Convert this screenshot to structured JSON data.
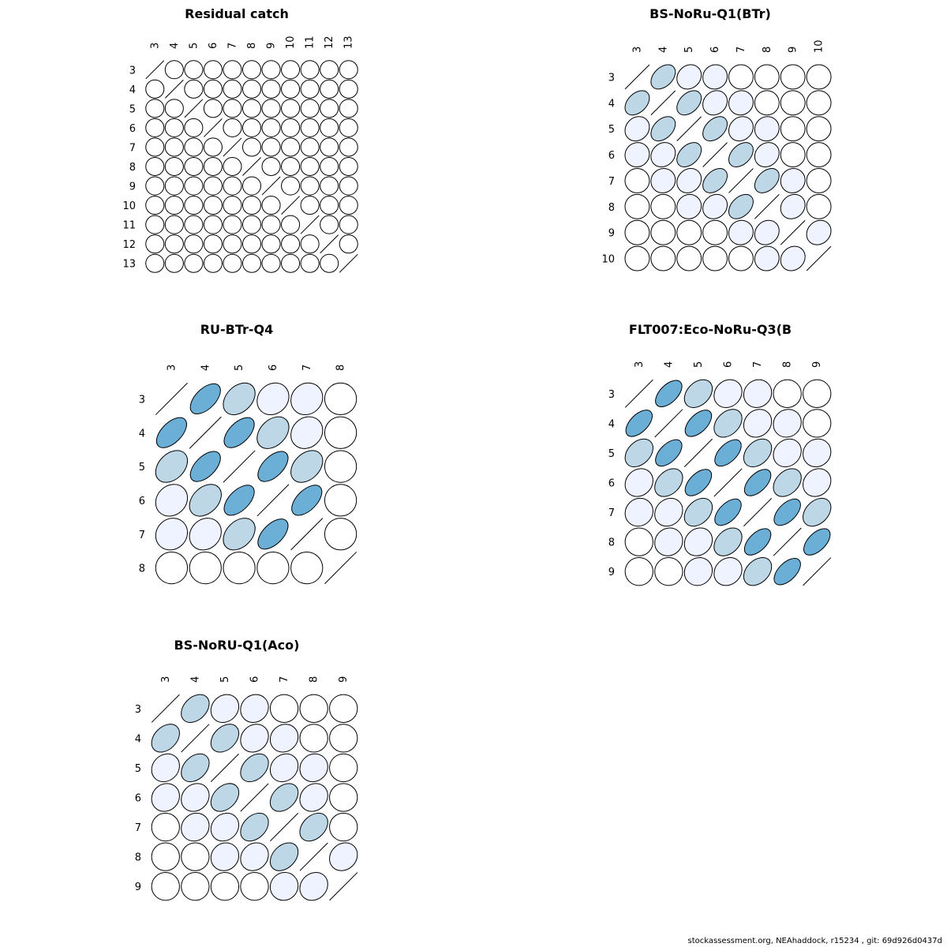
{
  "footer": "stockassessment.org, NEAhaddock, r15234 , git: 69d926d0437d",
  "colors": {
    "strong": "#6baed6",
    "medium": "#bdd7e7",
    "weak": "#eff3ff",
    "none": "#ffffff",
    "outline": "#000000"
  },
  "chart_data": [
    {
      "type": "heatmap",
      "title": "Residual catch",
      "ages": [
        "3",
        "4",
        "5",
        "6",
        "7",
        "8",
        "9",
        "10",
        "11",
        "12",
        "13"
      ],
      "correlation": [
        [
          1,
          0,
          0,
          0,
          0,
          0,
          0,
          0,
          0,
          0,
          0
        ],
        [
          0,
          1,
          0,
          0,
          0,
          0,
          0,
          0,
          0,
          0,
          0
        ],
        [
          0,
          0,
          1,
          0,
          0,
          0,
          0,
          0,
          0,
          0,
          0
        ],
        [
          0,
          0,
          0,
          1,
          0,
          0,
          0,
          0,
          0,
          0,
          0
        ],
        [
          0,
          0,
          0,
          0,
          1,
          0,
          0,
          0,
          0,
          0,
          0
        ],
        [
          0,
          0,
          0,
          0,
          0,
          1,
          0,
          0,
          0,
          0,
          0
        ],
        [
          0,
          0,
          0,
          0,
          0,
          0,
          1,
          0,
          0,
          0,
          0
        ],
        [
          0,
          0,
          0,
          0,
          0,
          0,
          0,
          1,
          0,
          0,
          0
        ],
        [
          0,
          0,
          0,
          0,
          0,
          0,
          0,
          0,
          1,
          0,
          0
        ],
        [
          0,
          0,
          0,
          0,
          0,
          0,
          0,
          0,
          0,
          1,
          0
        ],
        [
          0,
          0,
          0,
          0,
          0,
          0,
          0,
          0,
          0,
          0,
          1
        ]
      ]
    },
    {
      "type": "heatmap",
      "title": "BS-NoRu-Q1(BTr)",
      "ages": [
        "3",
        "4",
        "5",
        "6",
        "7",
        "8",
        "9",
        "10"
      ],
      "correlation": [
        [
          1,
          0.4,
          0.15,
          0.05,
          0,
          0,
          0,
          0
        ],
        [
          0.4,
          1,
          0.4,
          0.15,
          0.05,
          0,
          0,
          0
        ],
        [
          0.15,
          0.4,
          1,
          0.4,
          0.15,
          0.05,
          0,
          0
        ],
        [
          0.05,
          0.15,
          0.4,
          1,
          0.4,
          0.15,
          0,
          0
        ],
        [
          0,
          0.05,
          0.15,
          0.4,
          1,
          0.4,
          0.05,
          0
        ],
        [
          0,
          0,
          0.05,
          0.15,
          0.4,
          1,
          0.15,
          0
        ],
        [
          0,
          0,
          0,
          0,
          0.05,
          0.15,
          1,
          0.15
        ],
        [
          0,
          0,
          0,
          0,
          0,
          0.05,
          0.15,
          1
        ]
      ]
    },
    {
      "type": "heatmap",
      "title": "RU-BTr-Q4",
      "ages": [
        "3",
        "4",
        "5",
        "6",
        "7",
        "8"
      ],
      "correlation": [
        [
          1,
          0.6,
          0.35,
          0.15,
          0.1,
          0
        ],
        [
          0.6,
          1,
          0.6,
          0.35,
          0.15,
          0
        ],
        [
          0.35,
          0.6,
          1,
          0.6,
          0.35,
          0
        ],
        [
          0.15,
          0.35,
          0.6,
          1,
          0.6,
          0
        ],
        [
          0.1,
          0.15,
          0.35,
          0.6,
          1,
          0
        ],
        [
          0,
          0,
          0,
          0,
          0,
          1
        ]
      ]
    },
    {
      "type": "heatmap",
      "title": "FLT007:Eco-NoRu-Q3(B",
      "ages": [
        "3",
        "4",
        "5",
        "6",
        "7",
        "8",
        "9"
      ],
      "correlation": [
        [
          1,
          0.6,
          0.35,
          0.15,
          0.08,
          0,
          0
        ],
        [
          0.6,
          1,
          0.6,
          0.35,
          0.15,
          0.08,
          0
        ],
        [
          0.35,
          0.6,
          1,
          0.6,
          0.35,
          0.15,
          0.08
        ],
        [
          0.15,
          0.35,
          0.6,
          1,
          0.6,
          0.35,
          0.15
        ],
        [
          0.08,
          0.15,
          0.35,
          0.6,
          1,
          0.6,
          0.35
        ],
        [
          0,
          0.08,
          0.15,
          0.35,
          0.6,
          1,
          0.6
        ],
        [
          0,
          0,
          0.08,
          0.15,
          0.35,
          0.6,
          1
        ]
      ]
    },
    {
      "type": "heatmap",
      "title": "BS-NoRU-Q1(Aco)",
      "ages": [
        "3",
        "4",
        "5",
        "6",
        "7",
        "8",
        "9"
      ],
      "correlation": [
        [
          1,
          0.35,
          0.15,
          0.1,
          0,
          0,
          0
        ],
        [
          0.35,
          1,
          0.35,
          0.15,
          0.1,
          0,
          0
        ],
        [
          0.15,
          0.35,
          1,
          0.35,
          0.15,
          0.08,
          0
        ],
        [
          0.1,
          0.15,
          0.35,
          1,
          0.35,
          0.15,
          0
        ],
        [
          0,
          0.1,
          0.15,
          0.35,
          1,
          0.35,
          0
        ],
        [
          0,
          0,
          0.08,
          0.15,
          0.35,
          1,
          0.15
        ],
        [
          0,
          0,
          0,
          0,
          0.05,
          0.15,
          1
        ]
      ]
    }
  ]
}
